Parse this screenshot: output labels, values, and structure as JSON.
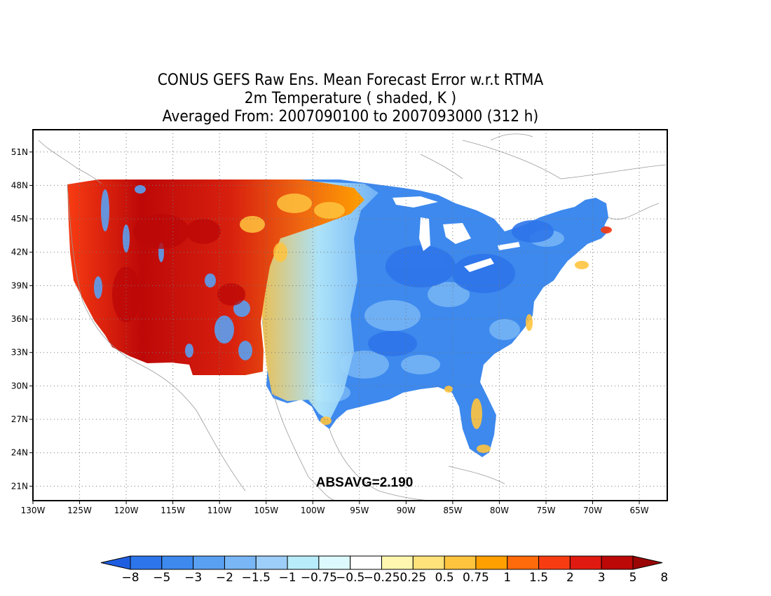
{
  "title": {
    "line1": "CONUS GEFS Raw Ens. Mean Forecast Error w.r.t RTMA",
    "line2": "2m Temperature ( shaded, K )",
    "line3": "Averaged From: 2007090100 to 2007093000 (312 h)"
  },
  "map": {
    "lon_range": [
      -130,
      -62
    ],
    "lat_range": [
      19.7,
      53
    ],
    "lon_ticks": [
      "130W",
      "125W",
      "120W",
      "115W",
      "110W",
      "105W",
      "100W",
      "95W",
      "90W",
      "85W",
      "80W",
      "75W",
      "70W",
      "65W"
    ],
    "lat_ticks": [
      "21N",
      "24N",
      "27N",
      "30N",
      "33N",
      "36N",
      "39N",
      "42N",
      "45N",
      "48N",
      "51N"
    ],
    "grid": "dotted",
    "annotation": "ABSAVG=2.190"
  },
  "colorbar": {
    "labels": [
      "−8",
      "−5",
      "−3",
      "−2",
      "−1.5",
      "−1",
      "−0.75",
      "−0.5",
      "−0.25",
      "0.25",
      "0.5",
      "0.75",
      "1",
      "1.5",
      "2",
      "3",
      "5",
      "8"
    ],
    "colors": [
      "#1f5ee0",
      "#2d75ea",
      "#3d89ee",
      "#5aa0f2",
      "#78b6f6",
      "#9dcef9",
      "#b8ecfa",
      "#dcfafe",
      "#ffffff",
      "#fff7b0",
      "#ffe27a",
      "#ffc43e",
      "#ffa000",
      "#ff6a0a",
      "#f83c12",
      "#e01a10",
      "#bd0808",
      "#9a0606"
    ],
    "left_arrow_color": "#1f5ee0",
    "right_arrow_color": "#9a0606"
  }
}
